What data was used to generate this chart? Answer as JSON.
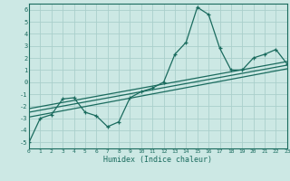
{
  "xlabel": "Humidex (Indice chaleur)",
  "bg_color": "#cce8e4",
  "grid_color": "#aacfcb",
  "line_color": "#1a6b5e",
  "xlim": [
    0,
    23
  ],
  "ylim": [
    -5.5,
    6.5
  ],
  "xticks": [
    0,
    1,
    2,
    3,
    4,
    5,
    6,
    7,
    8,
    9,
    10,
    11,
    12,
    13,
    14,
    15,
    16,
    17,
    18,
    19,
    20,
    21,
    22,
    23
  ],
  "yticks": [
    -5,
    -4,
    -3,
    -2,
    -1,
    0,
    1,
    2,
    3,
    4,
    5,
    6
  ],
  "main_curve_x": [
    0,
    1,
    2,
    3,
    4,
    5,
    6,
    7,
    8,
    9,
    10,
    11,
    12,
    13,
    14,
    15,
    16,
    17,
    18,
    19,
    20,
    21,
    22,
    23
  ],
  "main_curve_y": [
    -5.0,
    -3.0,
    -2.7,
    -1.4,
    -1.3,
    -2.5,
    -2.8,
    -3.7,
    -3.3,
    -1.3,
    -0.8,
    -0.5,
    0.0,
    2.3,
    3.3,
    6.2,
    5.6,
    2.8,
    1.0,
    1.0,
    2.0,
    2.3,
    2.7,
    1.5
  ],
  "reg_lines": [
    {
      "x": [
        0,
        23
      ],
      "y": [
        -2.9,
        1.1
      ]
    },
    {
      "x": [
        0,
        23
      ],
      "y": [
        -2.5,
        1.4
      ]
    },
    {
      "x": [
        0,
        23
      ],
      "y": [
        -2.2,
        1.7
      ]
    }
  ]
}
